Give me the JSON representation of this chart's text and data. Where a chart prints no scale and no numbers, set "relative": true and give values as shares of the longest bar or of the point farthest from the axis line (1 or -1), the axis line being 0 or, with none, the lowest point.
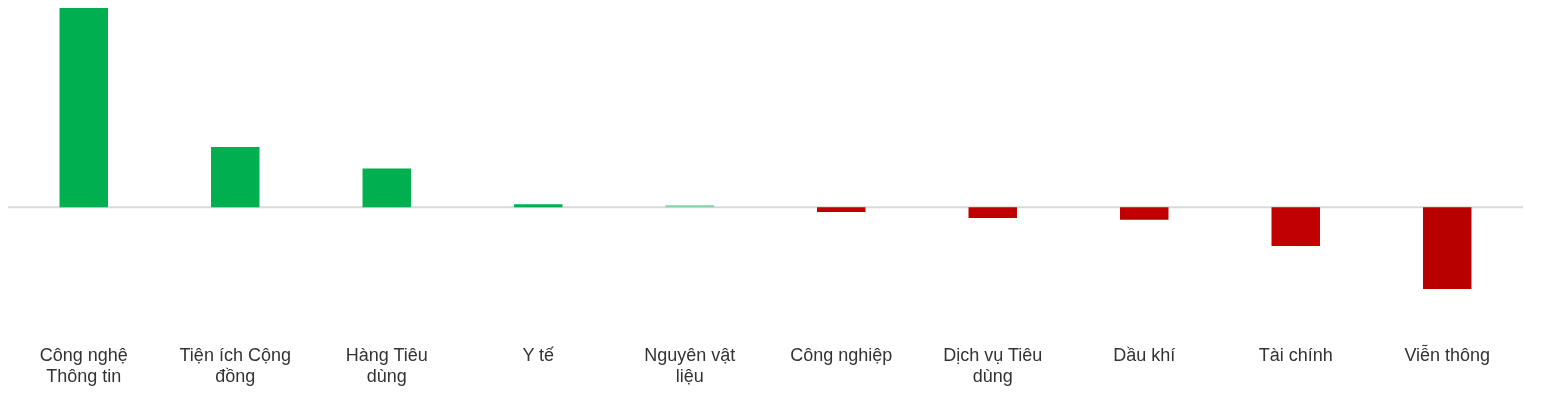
{
  "chart_data": {
    "type": "bar",
    "relative": true,
    "categories": [
      "Công nghệ Thông tin",
      "Tiện ích Cộng đồng",
      "Hàng Tiêu dùng",
      "Y tế",
      "Nguyên vật liệu",
      "Công nghiệp",
      "Dịch vụ Tiêu dùng",
      "Dầu khí",
      "Tài chính",
      "Viễn thông"
    ],
    "values": [
      1,
      0.302,
      0.195,
      0.015,
      0.01,
      -0.024,
      -0.054,
      -0.063,
      -0.195,
      -0.41
    ],
    "colors": [
      "#00b050",
      "#00b050",
      "#00b050",
      "#00b050",
      "#7fd7a7",
      "#c00000",
      "#c00000",
      "#c00000",
      "#c00000",
      "#b80000"
    ]
  }
}
